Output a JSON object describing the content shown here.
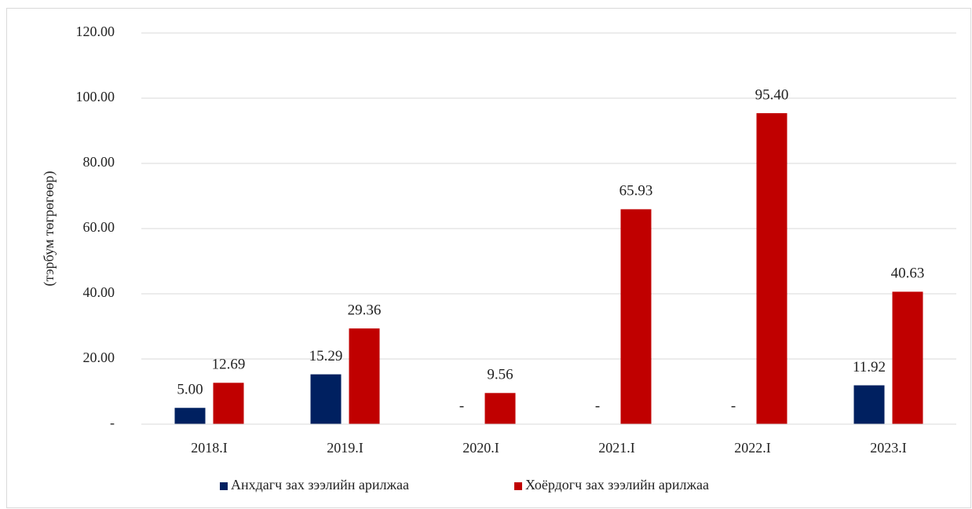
{
  "chart_data": {
    "type": "bar",
    "y_label": "(тэрбум төгрөгөөр)",
    "categories": [
      "2018.I",
      "2019.I",
      "2020.I",
      "2021.I",
      "2022.I",
      "2023.I"
    ],
    "series": [
      {
        "name": "Анхдагч зах зээлийн арилжаа",
        "color": "#002060",
        "values": [
          5.0,
          15.29,
          0,
          0,
          0,
          11.92
        ],
        "value_labels": [
          "5.00",
          "15.29",
          "-",
          "-",
          "-",
          "11.92"
        ]
      },
      {
        "name": "Хоёрдогч зах зээлийн арилжаа",
        "color": "#c00000",
        "values": [
          12.69,
          29.36,
          9.56,
          65.93,
          95.4,
          40.63
        ],
        "value_labels": [
          "12.69",
          "29.36",
          "9.56",
          "65.93",
          "95.40",
          "40.63"
        ]
      }
    ],
    "ylim": [
      0,
      120
    ],
    "yticks": [
      {
        "value": 0,
        "label": "-"
      },
      {
        "value": 20,
        "label": "20.00"
      },
      {
        "value": 40,
        "label": "40.00"
      },
      {
        "value": 60,
        "label": "60.00"
      },
      {
        "value": 80,
        "label": "80.00"
      },
      {
        "value": 100,
        "label": "100.00"
      },
      {
        "value": 120,
        "label": "120.00"
      }
    ],
    "grid": true,
    "legend": "bottom"
  }
}
